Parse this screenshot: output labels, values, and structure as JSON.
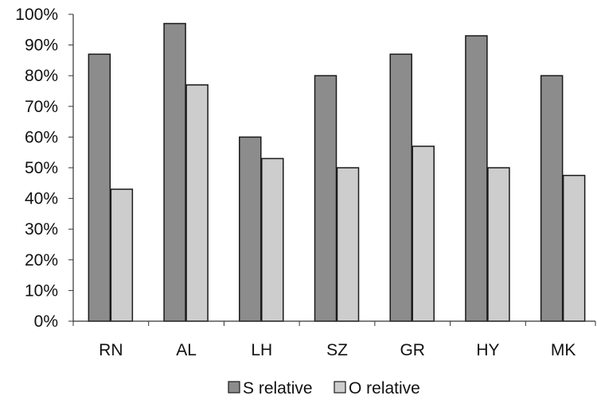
{
  "chart_data": {
    "type": "bar",
    "categories": [
      "RN",
      "AL",
      "LH",
      "SZ",
      "GR",
      "HY",
      "MK"
    ],
    "series": [
      {
        "name": "S relative",
        "values": [
          87,
          97,
          60,
          80,
          87,
          93,
          80
        ]
      },
      {
        "name": "O relative",
        "values": [
          43,
          77,
          53,
          50,
          57,
          50,
          47.5
        ]
      }
    ],
    "ylim": [
      0,
      100
    ],
    "ytick_values": [
      0,
      10,
      20,
      30,
      40,
      50,
      60,
      70,
      80,
      90,
      100
    ],
    "ytick_labels": [
      "0%",
      "10%",
      "20%",
      "30%",
      "40%",
      "50%",
      "60%",
      "70%",
      "80%",
      "90%",
      "100%"
    ],
    "title": "",
    "xlabel": "",
    "ylabel": "",
    "grid": false,
    "legend_position": "bottom",
    "colors": {
      "series": [
        "#8c8c8c",
        "#cdcdcd"
      ],
      "outline": "#1a1a1a",
      "axis": "#333333",
      "text": "#111111"
    }
  }
}
